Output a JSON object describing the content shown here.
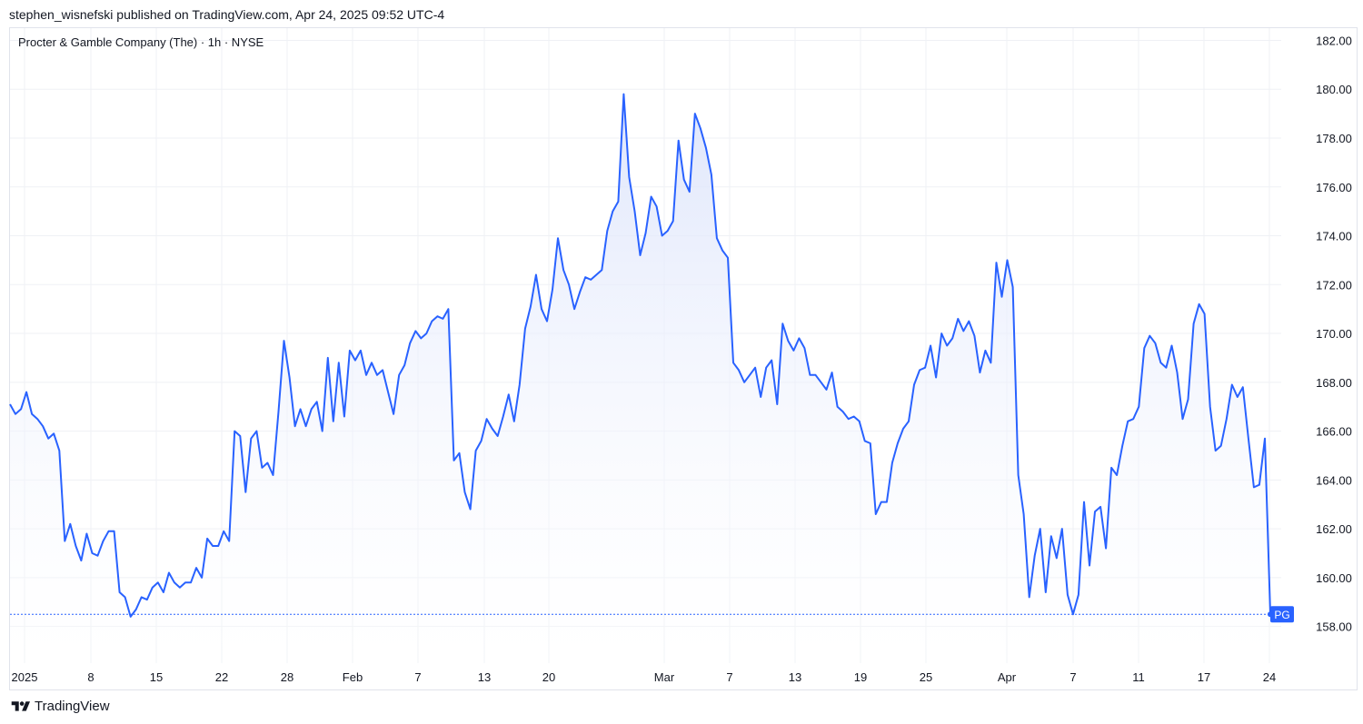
{
  "header": {
    "published_line": "stephen_wisnefski published on TradingView.com, Apr 24, 2025 09:52 UTC-4"
  },
  "symbol": {
    "title": "Procter & Gamble Company (The) · 1h · NYSE"
  },
  "footer": {
    "brand": "TradingView",
    "logo_icon": "tradingview-logo-icon"
  },
  "colors": {
    "line": "#2962ff",
    "area_top": "#dbe3fb",
    "grid": "#eff1f5",
    "axis_text": "#131722",
    "last_price_badge": "#2962ff"
  },
  "chart_data": {
    "type": "area",
    "title": "Procter & Gamble Company (The) · 1h · NYSE",
    "ylim": [
      156.5,
      182.5
    ],
    "y_ticks": [
      "182.00",
      "180.00",
      "178.00",
      "176.00",
      "174.00",
      "172.00",
      "170.00",
      "168.00",
      "166.00",
      "164.00",
      "162.00",
      "160.00",
      "158.00"
    ],
    "x_ticks": [
      "2025",
      "8",
      "15",
      "22",
      "28",
      "Feb",
      "7",
      "13",
      "20",
      "Mar",
      "7",
      "13",
      "19",
      "25",
      "Apr",
      "7",
      "11",
      "17",
      "24"
    ],
    "last_label": "PG",
    "last_value": 158.5,
    "grid": true,
    "series": [
      {
        "values": [
          167.1,
          166.7,
          166.9,
          167.6,
          166.7,
          166.5,
          166.2,
          165.7,
          165.9,
          165.2,
          161.5,
          162.2,
          161.3,
          160.7,
          161.8,
          161.0,
          160.9,
          161.5,
          161.9,
          161.9,
          159.4,
          159.2,
          158.4,
          158.7,
          159.2,
          159.1,
          159.6,
          159.8,
          159.4,
          160.2,
          159.8,
          159.6,
          159.8,
          159.8,
          160.4,
          160.0,
          161.6,
          161.3,
          161.3,
          161.9,
          161.5,
          166.0,
          165.8,
          163.5,
          165.7,
          166.0,
          164.5,
          164.7,
          164.2,
          166.8,
          169.7,
          168.2,
          166.2,
          166.9,
          166.2,
          166.9,
          167.2,
          166.0,
          169.0,
          166.4,
          168.8,
          166.6,
          169.3,
          168.9,
          169.3,
          168.3,
          168.8,
          168.3,
          168.5,
          167.6,
          166.7,
          168.3,
          168.7,
          169.6,
          170.1,
          169.8,
          170.0,
          170.5,
          170.7,
          170.6,
          171.0,
          164.8,
          165.1,
          163.5,
          162.8,
          165.2,
          165.6,
          166.5,
          166.1,
          165.8,
          166.6,
          167.5,
          166.4,
          167.9,
          170.2,
          171.1,
          172.4,
          171.0,
          170.5,
          171.8,
          173.9,
          172.6,
          172.0,
          171.0,
          171.7,
          172.3,
          172.2,
          172.4,
          172.6,
          174.2,
          175.0,
          175.4,
          179.8,
          176.4,
          175.0,
          173.2,
          174.1,
          175.6,
          175.2,
          174.0,
          174.2,
          174.6,
          177.9,
          176.3,
          175.8,
          179.0,
          178.4,
          177.6,
          176.5,
          173.9,
          173.4,
          173.1,
          168.8,
          168.5,
          168.0,
          168.3,
          168.6,
          167.4,
          168.6,
          168.9,
          167.1,
          170.4,
          169.7,
          169.3,
          169.8,
          169.4,
          168.3,
          168.3,
          168.0,
          167.7,
          168.4,
          167.0,
          166.8,
          166.5,
          166.6,
          166.4,
          165.6,
          165.5,
          162.6,
          163.1,
          163.1,
          164.7,
          165.5,
          166.1,
          166.4,
          167.9,
          168.5,
          168.6,
          169.5,
          168.2,
          170.0,
          169.5,
          169.8,
          170.6,
          170.1,
          170.5,
          169.9,
          168.4,
          169.3,
          168.8,
          172.9,
          171.5,
          173.0,
          171.9,
          164.2,
          162.6,
          159.2,
          160.9,
          162.0,
          159.4,
          161.7,
          160.8,
          162.0,
          159.3,
          158.5,
          159.3,
          163.1,
          160.5,
          162.7,
          162.9,
          161.2,
          164.5,
          164.2,
          165.4,
          166.4,
          166.5,
          167.0,
          169.4,
          169.9,
          169.6,
          168.8,
          168.6,
          169.5,
          168.4,
          166.5,
          167.3,
          170.4,
          171.2,
          170.8,
          167.0,
          165.2,
          165.4,
          166.5,
          167.9,
          167.4,
          167.8,
          165.7,
          163.7,
          163.8,
          165.7,
          158.5
        ]
      }
    ]
  }
}
